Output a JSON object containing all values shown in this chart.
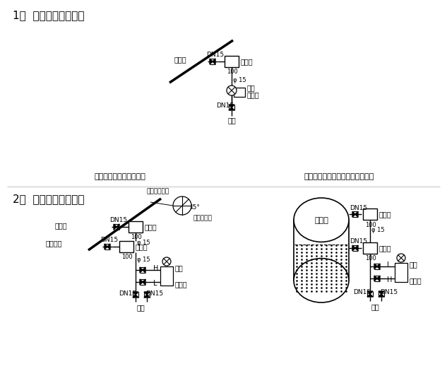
{
  "title1": "1、  压力变送器安装图",
  "title2": "2、  差压变送器安装图",
  "label1_bottom": "测管道差压的安装示意图",
  "label2_bottom": "测闪蔻罐冷凝水液位的安装示意图",
  "bg_color": "#ffffff",
  "text_steam1": "蒸汽管",
  "text_steam2": "蒸汽管",
  "text_cool": "冷凝水管",
  "text_balance": "平衡罐",
  "text_pressure_tx": "压力",
  "text_pressure_tx2": "变送器",
  "text_diff_tx": "差压",
  "text_diff_tx2": "变送器",
  "text_drain": "排污",
  "text_flash_tank": "闪蔻罐",
  "text_cross_sec": "蒸汽管横截面",
  "text_measure": "引出测量点"
}
